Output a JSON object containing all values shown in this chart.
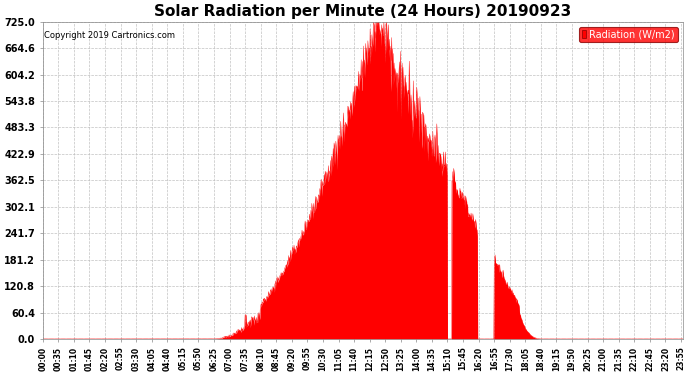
{
  "title": "Solar Radiation per Minute (24 Hours) 20190923",
  "copyright_text": "Copyright 2019 Cartronics.com",
  "legend_label": "Radiation (W/m2)",
  "ylabel_values": [
    0.0,
    60.4,
    120.8,
    181.2,
    241.7,
    302.1,
    362.5,
    422.9,
    483.3,
    543.8,
    604.2,
    664.6,
    725.0
  ],
  "ylim": [
    0.0,
    725.0
  ],
  "fill_color": "#FF0000",
  "line_color": "#FF0000",
  "grid_color": "#BBBBBB",
  "background_color": "#FFFFFF",
  "title_fontsize": 11,
  "legend_box_color": "#FF0000",
  "legend_text_color": "#FFFFFF",
  "total_minutes": 1440,
  "sunrise_min": 385,
  "sunset_min": 1120,
  "peak_min": 752,
  "peak_val": 725.0
}
